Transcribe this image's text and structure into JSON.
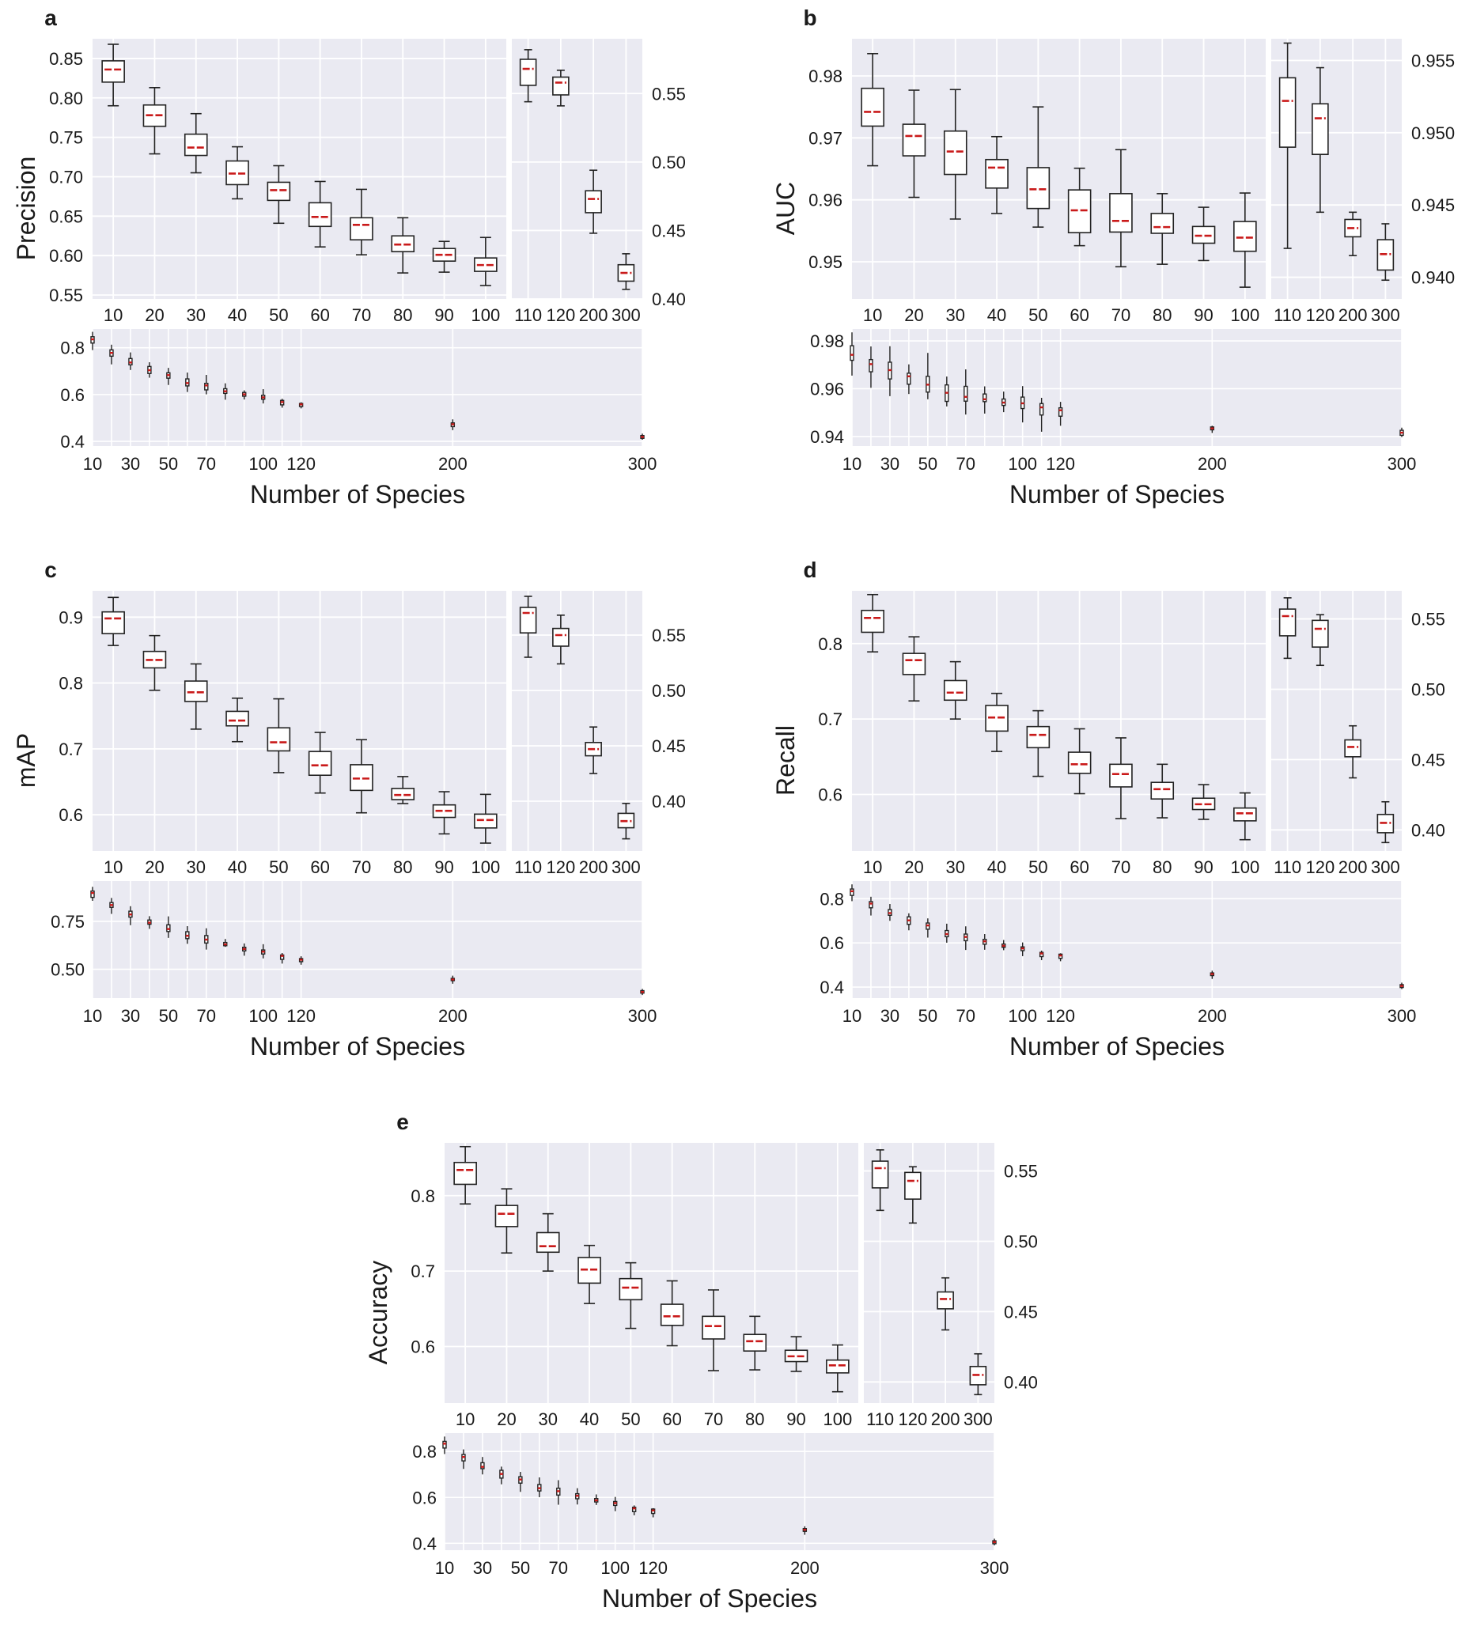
{
  "chart_data": [
    {
      "type": "box",
      "panel_label": "a",
      "ylabel": "Precision",
      "xlabel": "Number of Species",
      "left": {
        "categories": [
          "10",
          "20",
          "30",
          "40",
          "50",
          "60",
          "70",
          "80",
          "90",
          "100"
        ],
        "ylim": [
          0.545,
          0.875
        ],
        "yticks": [
          0.55,
          0.6,
          0.65,
          0.7,
          0.75,
          0.8,
          0.85
        ],
        "ytick_labels": [
          "0.55",
          "0.60",
          "0.65",
          "0.70",
          "0.75",
          "0.80",
          "0.85"
        ],
        "boxes": [
          {
            "whislo": 0.79,
            "q1": 0.82,
            "med": 0.836,
            "q3": 0.847,
            "whishi": 0.868
          },
          {
            "whislo": 0.729,
            "q1": 0.764,
            "med": 0.778,
            "q3": 0.791,
            "whishi": 0.813
          },
          {
            "whislo": 0.705,
            "q1": 0.727,
            "med": 0.737,
            "q3": 0.754,
            "whishi": 0.78
          },
          {
            "whislo": 0.672,
            "q1": 0.69,
            "med": 0.704,
            "q3": 0.72,
            "whishi": 0.738
          },
          {
            "whislo": 0.641,
            "q1": 0.67,
            "med": 0.683,
            "q3": 0.693,
            "whishi": 0.714
          },
          {
            "whislo": 0.611,
            "q1": 0.637,
            "med": 0.649,
            "q3": 0.667,
            "whishi": 0.694
          },
          {
            "whislo": 0.601,
            "q1": 0.62,
            "med": 0.639,
            "q3": 0.648,
            "whishi": 0.684
          },
          {
            "whislo": 0.578,
            "q1": 0.605,
            "med": 0.614,
            "q3": 0.625,
            "whishi": 0.648
          },
          {
            "whislo": 0.579,
            "q1": 0.593,
            "med": 0.601,
            "q3": 0.609,
            "whishi": 0.618
          },
          {
            "whislo": 0.562,
            "q1": 0.58,
            "med": 0.588,
            "q3": 0.597,
            "whishi": 0.623
          }
        ]
      },
      "right": {
        "categories": [
          "110",
          "120",
          "200",
          "300"
        ],
        "ylim": [
          0.4,
          0.59
        ],
        "yticks": [
          0.4,
          0.45,
          0.5,
          0.55
        ],
        "ytick_labels": [
          "0.40",
          "0.45",
          "0.50",
          "0.55"
        ],
        "boxes": [
          {
            "whislo": 0.544,
            "q1": 0.556,
            "med": 0.568,
            "q3": 0.575,
            "whishi": 0.582
          },
          {
            "whislo": 0.541,
            "q1": 0.549,
            "med": 0.558,
            "q3": 0.562,
            "whishi": 0.567
          },
          {
            "whislo": 0.448,
            "q1": 0.463,
            "med": 0.473,
            "q3": 0.479,
            "whishi": 0.494
          },
          {
            "whislo": 0.407,
            "q1": 0.413,
            "med": 0.419,
            "q3": 0.425,
            "whishi": 0.433
          }
        ]
      },
      "overview": {
        "ylim": [
          0.38,
          0.88
        ],
        "yticks": [
          0.4,
          0.6,
          0.8
        ],
        "ytick_labels": [
          "0.4",
          "0.6",
          "0.8"
        ],
        "xlim": [
          10,
          300
        ],
        "xticks": [
          10,
          30,
          50,
          70,
          100,
          120,
          200,
          300
        ],
        "xtick_labels": [
          "10",
          "30",
          "50",
          "70",
          "100",
          "120",
          "200",
          "300"
        ]
      }
    },
    {
      "type": "box",
      "panel_label": "b",
      "ylabel": "AUC",
      "xlabel": "Number of Species",
      "left": {
        "categories": [
          "10",
          "20",
          "30",
          "40",
          "50",
          "60",
          "70",
          "80",
          "90",
          "100"
        ],
        "ylim": [
          0.944,
          0.986
        ],
        "yticks": [
          0.95,
          0.96,
          0.97,
          0.98
        ],
        "ytick_labels": [
          "0.95",
          "0.96",
          "0.97",
          "0.98"
        ],
        "boxes": [
          {
            "whislo": 0.9655,
            "q1": 0.9719,
            "med": 0.9742,
            "q3": 0.978,
            "whishi": 0.9836
          },
          {
            "whislo": 0.9604,
            "q1": 0.9671,
            "med": 0.9703,
            "q3": 0.9722,
            "whishi": 0.9777
          },
          {
            "whislo": 0.9569,
            "q1": 0.9641,
            "med": 0.9678,
            "q3": 0.9711,
            "whishi": 0.9778
          },
          {
            "whislo": 0.9578,
            "q1": 0.9619,
            "med": 0.9652,
            "q3": 0.9665,
            "whishi": 0.9702
          },
          {
            "whislo": 0.9556,
            "q1": 0.9586,
            "med": 0.9617,
            "q3": 0.9652,
            "whishi": 0.975
          },
          {
            "whislo": 0.9526,
            "q1": 0.9547,
            "med": 0.9583,
            "q3": 0.9616,
            "whishi": 0.9651
          },
          {
            "whislo": 0.9492,
            "q1": 0.9548,
            "med": 0.9566,
            "q3": 0.961,
            "whishi": 0.9681
          },
          {
            "whislo": 0.9496,
            "q1": 0.9546,
            "med": 0.9556,
            "q3": 0.9578,
            "whishi": 0.961
          },
          {
            "whislo": 0.9502,
            "q1": 0.953,
            "med": 0.9542,
            "q3": 0.9557,
            "whishi": 0.9588
          },
          {
            "whislo": 0.9459,
            "q1": 0.9517,
            "med": 0.9539,
            "q3": 0.9565,
            "whishi": 0.9611
          }
        ]
      },
      "right": {
        "categories": [
          "110",
          "120",
          "200",
          "300"
        ],
        "ylim": [
          0.9385,
          0.9565
        ],
        "yticks": [
          0.94,
          0.945,
          0.95,
          0.955
        ],
        "ytick_labels": [
          "0.940",
          "0.945",
          "0.950",
          "0.955"
        ],
        "boxes": [
          {
            "whislo": 0.942,
            "q1": 0.949,
            "med": 0.9522,
            "q3": 0.9538,
            "whishi": 0.9562
          },
          {
            "whislo": 0.9445,
            "q1": 0.9485,
            "med": 0.951,
            "q3": 0.952,
            "whishi": 0.9545
          },
          {
            "whislo": 0.9415,
            "q1": 0.9428,
            "med": 0.9434,
            "q3": 0.944,
            "whishi": 0.9445
          },
          {
            "whislo": 0.9398,
            "q1": 0.9405,
            "med": 0.9416,
            "q3": 0.9426,
            "whishi": 0.9437
          }
        ]
      },
      "overview": {
        "ylim": [
          0.936,
          0.985
        ],
        "yticks": [
          0.94,
          0.96,
          0.98
        ],
        "ytick_labels": [
          "0.94",
          "0.96",
          "0.98"
        ],
        "xlim": [
          10,
          300
        ],
        "xticks": [
          10,
          30,
          50,
          70,
          100,
          120,
          200,
          300
        ],
        "xtick_labels": [
          "10",
          "30",
          "50",
          "70",
          "100",
          "120",
          "200",
          "300"
        ]
      }
    },
    {
      "type": "box",
      "panel_label": "c",
      "ylabel": "mAP",
      "xlabel": "Number of Species",
      "left": {
        "categories": [
          "10",
          "20",
          "30",
          "40",
          "50",
          "60",
          "70",
          "80",
          "90",
          "100"
        ],
        "ylim": [
          0.545,
          0.94
        ],
        "yticks": [
          0.6,
          0.7,
          0.8,
          0.9
        ],
        "ytick_labels": [
          "0.6",
          "0.7",
          "0.8",
          "0.9"
        ],
        "boxes": [
          {
            "whislo": 0.857,
            "q1": 0.875,
            "med": 0.898,
            "q3": 0.908,
            "whishi": 0.93
          },
          {
            "whislo": 0.789,
            "q1": 0.823,
            "med": 0.835,
            "q3": 0.848,
            "whishi": 0.872
          },
          {
            "whislo": 0.73,
            "q1": 0.772,
            "med": 0.786,
            "q3": 0.803,
            "whishi": 0.829
          },
          {
            "whislo": 0.711,
            "q1": 0.735,
            "med": 0.743,
            "q3": 0.757,
            "whishi": 0.777
          },
          {
            "whislo": 0.664,
            "q1": 0.697,
            "med": 0.71,
            "q3": 0.732,
            "whishi": 0.776
          },
          {
            "whislo": 0.633,
            "q1": 0.66,
            "med": 0.675,
            "q3": 0.696,
            "whishi": 0.725
          },
          {
            "whislo": 0.603,
            "q1": 0.637,
            "med": 0.655,
            "q3": 0.676,
            "whishi": 0.714
          },
          {
            "whislo": 0.617,
            "q1": 0.623,
            "med": 0.63,
            "q3": 0.64,
            "whishi": 0.658
          },
          {
            "whislo": 0.571,
            "q1": 0.596,
            "med": 0.606,
            "q3": 0.615,
            "whishi": 0.635
          },
          {
            "whislo": 0.557,
            "q1": 0.58,
            "med": 0.592,
            "q3": 0.601,
            "whishi": 0.631
          }
        ]
      },
      "right": {
        "categories": [
          "110",
          "120",
          "200",
          "300"
        ],
        "ylim": [
          0.355,
          0.59
        ],
        "yticks": [
          0.4,
          0.45,
          0.5,
          0.55
        ],
        "ytick_labels": [
          "0.40",
          "0.45",
          "0.50",
          "0.55"
        ],
        "boxes": [
          {
            "whislo": 0.53,
            "q1": 0.552,
            "med": 0.57,
            "q3": 0.575,
            "whishi": 0.585
          },
          {
            "whislo": 0.524,
            "q1": 0.54,
            "med": 0.55,
            "q3": 0.556,
            "whishi": 0.568
          },
          {
            "whislo": 0.425,
            "q1": 0.441,
            "med": 0.447,
            "q3": 0.453,
            "whishi": 0.467
          },
          {
            "whislo": 0.366,
            "q1": 0.376,
            "med": 0.382,
            "q3": 0.389,
            "whishi": 0.398
          }
        ]
      },
      "overview": {
        "ylim": [
          0.35,
          0.96
        ],
        "yticks": [
          0.5,
          0.75
        ],
        "ytick_labels": [
          "0.50",
          "0.75"
        ],
        "xlim": [
          10,
          300
        ],
        "xticks": [
          10,
          30,
          50,
          70,
          100,
          120,
          200,
          300
        ],
        "xtick_labels": [
          "10",
          "30",
          "50",
          "70",
          "100",
          "120",
          "200",
          "300"
        ]
      }
    },
    {
      "type": "box",
      "panel_label": "d",
      "ylabel": "Recall",
      "xlabel": "Number of Species",
      "left": {
        "categories": [
          "10",
          "20",
          "30",
          "40",
          "50",
          "60",
          "70",
          "80",
          "90",
          "100"
        ],
        "ylim": [
          0.525,
          0.87
        ],
        "yticks": [
          0.6,
          0.7,
          0.8
        ],
        "ytick_labels": [
          "0.6",
          "0.7",
          "0.8"
        ],
        "boxes": [
          {
            "whislo": 0.789,
            "q1": 0.815,
            "med": 0.834,
            "q3": 0.844,
            "whishi": 0.865
          },
          {
            "whislo": 0.724,
            "q1": 0.759,
            "med": 0.778,
            "q3": 0.787,
            "whishi": 0.809
          },
          {
            "whislo": 0.7,
            "q1": 0.725,
            "med": 0.735,
            "q3": 0.751,
            "whishi": 0.776
          },
          {
            "whislo": 0.657,
            "q1": 0.684,
            "med": 0.702,
            "q3": 0.718,
            "whishi": 0.734
          },
          {
            "whislo": 0.624,
            "q1": 0.662,
            "med": 0.679,
            "q3": 0.69,
            "whishi": 0.711
          },
          {
            "whislo": 0.601,
            "q1": 0.628,
            "med": 0.64,
            "q3": 0.656,
            "whishi": 0.687
          },
          {
            "whislo": 0.568,
            "q1": 0.61,
            "med": 0.627,
            "q3": 0.64,
            "whishi": 0.675
          },
          {
            "whislo": 0.569,
            "q1": 0.594,
            "med": 0.607,
            "q3": 0.616,
            "whishi": 0.64
          },
          {
            "whislo": 0.567,
            "q1": 0.58,
            "med": 0.587,
            "q3": 0.595,
            "whishi": 0.613
          },
          {
            "whislo": 0.54,
            "q1": 0.565,
            "med": 0.575,
            "q3": 0.582,
            "whishi": 0.602
          }
        ]
      },
      "right": {
        "categories": [
          "110",
          "120",
          "200",
          "300"
        ],
        "ylim": [
          0.385,
          0.57
        ],
        "yticks": [
          0.4,
          0.45,
          0.5,
          0.55
        ],
        "ytick_labels": [
          "0.40",
          "0.45",
          "0.50",
          "0.55"
        ],
        "boxes": [
          {
            "whislo": 0.522,
            "q1": 0.538,
            "med": 0.552,
            "q3": 0.557,
            "whishi": 0.565
          },
          {
            "whislo": 0.517,
            "q1": 0.53,
            "med": 0.543,
            "q3": 0.549,
            "whishi": 0.553
          },
          {
            "whislo": 0.437,
            "q1": 0.452,
            "med": 0.459,
            "q3": 0.464,
            "whishi": 0.474
          },
          {
            "whislo": 0.391,
            "q1": 0.398,
            "med": 0.405,
            "q3": 0.411,
            "whishi": 0.42
          }
        ]
      },
      "overview": {
        "ylim": [
          0.35,
          0.88
        ],
        "yticks": [
          0.4,
          0.6,
          0.8
        ],
        "ytick_labels": [
          "0.4",
          "0.6",
          "0.8"
        ],
        "xlim": [
          10,
          300
        ],
        "xticks": [
          10,
          30,
          50,
          70,
          100,
          120,
          200,
          300
        ],
        "xtick_labels": [
          "10",
          "30",
          "50",
          "70",
          "100",
          "120",
          "200",
          "300"
        ]
      }
    },
    {
      "type": "box",
      "panel_label": "e",
      "ylabel": "Accuracy",
      "xlabel": "Number of Species",
      "left": {
        "categories": [
          "10",
          "20",
          "30",
          "40",
          "50",
          "60",
          "70",
          "80",
          "90",
          "100"
        ],
        "ylim": [
          0.525,
          0.87
        ],
        "yticks": [
          0.6,
          0.7,
          0.8
        ],
        "ytick_labels": [
          "0.6",
          "0.7",
          "0.8"
        ],
        "boxes": [
          {
            "whislo": 0.789,
            "q1": 0.815,
            "med": 0.834,
            "q3": 0.844,
            "whishi": 0.865
          },
          {
            "whislo": 0.724,
            "q1": 0.759,
            "med": 0.776,
            "q3": 0.787,
            "whishi": 0.809
          },
          {
            "whislo": 0.7,
            "q1": 0.725,
            "med": 0.733,
            "q3": 0.751,
            "whishi": 0.776
          },
          {
            "whislo": 0.657,
            "q1": 0.684,
            "med": 0.702,
            "q3": 0.718,
            "whishi": 0.734
          },
          {
            "whislo": 0.624,
            "q1": 0.662,
            "med": 0.678,
            "q3": 0.69,
            "whishi": 0.711
          },
          {
            "whislo": 0.601,
            "q1": 0.628,
            "med": 0.64,
            "q3": 0.656,
            "whishi": 0.687
          },
          {
            "whislo": 0.568,
            "q1": 0.61,
            "med": 0.627,
            "q3": 0.64,
            "whishi": 0.675
          },
          {
            "whislo": 0.569,
            "q1": 0.594,
            "med": 0.607,
            "q3": 0.616,
            "whishi": 0.64
          },
          {
            "whislo": 0.567,
            "q1": 0.58,
            "med": 0.587,
            "q3": 0.595,
            "whishi": 0.613
          },
          {
            "whislo": 0.54,
            "q1": 0.565,
            "med": 0.575,
            "q3": 0.582,
            "whishi": 0.602
          }
        ]
      },
      "right": {
        "categories": [
          "110",
          "120",
          "200",
          "300"
        ],
        "ylim": [
          0.385,
          0.57
        ],
        "yticks": [
          0.4,
          0.45,
          0.5,
          0.55
        ],
        "ytick_labels": [
          "0.40",
          "0.45",
          "0.50",
          "0.55"
        ],
        "boxes": [
          {
            "whislo": 0.522,
            "q1": 0.538,
            "med": 0.552,
            "q3": 0.557,
            "whishi": 0.565
          },
          {
            "whislo": 0.513,
            "q1": 0.53,
            "med": 0.543,
            "q3": 0.549,
            "whishi": 0.553
          },
          {
            "whislo": 0.437,
            "q1": 0.452,
            "med": 0.459,
            "q3": 0.464,
            "whishi": 0.474
          },
          {
            "whislo": 0.391,
            "q1": 0.398,
            "med": 0.405,
            "q3": 0.411,
            "whishi": 0.42
          }
        ]
      },
      "overview": {
        "ylim": [
          0.37,
          0.88
        ],
        "yticks": [
          0.4,
          0.6,
          0.8
        ],
        "ytick_labels": [
          "0.4",
          "0.6",
          "0.8"
        ],
        "xlim": [
          10,
          300
        ],
        "xticks": [
          10,
          30,
          50,
          70,
          100,
          120,
          200,
          300
        ],
        "xtick_labels": [
          "10",
          "30",
          "50",
          "70",
          "100",
          "120",
          "200",
          "300"
        ]
      }
    }
  ],
  "style": {
    "axes_bg": "#eaeaf2",
    "grid": "#ffffff",
    "box_edge": "#222222",
    "box_fill": "#ffffff",
    "median": "#c91a1a",
    "text": "#1a1a1a"
  }
}
